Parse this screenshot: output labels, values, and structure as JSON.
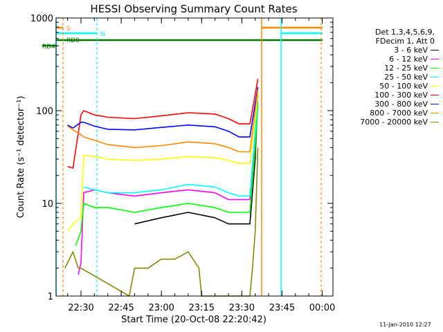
{
  "chart_data": {
    "type": "line",
    "title": "HESSI Observing Summary Count Rates",
    "xlabel": "Start Time (20-Oct-08 22:20:42)",
    "ylabel": "Count Rate (s⁻¹ detector⁻¹)",
    "y_scale": "log",
    "ylim": [
      1,
      1000
    ],
    "y_ticks": [
      1,
      10,
      100,
      1000
    ],
    "y_tick_labels": [
      "1",
      "10",
      "100",
      "1000"
    ],
    "xlim": [
      "22:20:42",
      "00:04:00"
    ],
    "x_ticks": [
      "22:30",
      "22:45",
      "23:00",
      "23:15",
      "23:30",
      "23:45",
      "00:00"
    ],
    "legend_header": [
      "Det 1,3,4,5,6,9,",
      "FDecim 1, Att 0"
    ],
    "flag_labels": {
      "s": "S",
      "n": "N",
      "rd": "RD",
      "rd0": "RD0",
      "rd4": "RD4"
    },
    "series": [
      {
        "name": "3 - 6 keV",
        "color": "#000000",
        "x": [
          "22:30",
          "22:40",
          "22:50",
          "23:00",
          "23:10",
          "23:20",
          "23:25",
          "23:29",
          "23:33",
          "23:35",
          "23:36"
        ],
        "values": [
          null,
          null,
          6,
          7,
          8,
          7,
          6,
          6,
          6,
          30,
          150
        ]
      },
      {
        "name": "6 - 12 keV",
        "color": "#ff00ff",
        "x": [
          "22:29",
          "22:30",
          "22:31",
          "22:35",
          "22:40",
          "22:50",
          "23:00",
          "23:10",
          "23:20",
          "23:25",
          "23:29",
          "23:33",
          "23:35",
          "23:36"
        ],
        "values": [
          1.7,
          2.3,
          13,
          14,
          13,
          12,
          13,
          14,
          13,
          11,
          11,
          11,
          50,
          150
        ]
      },
      {
        "name": "12 - 25 keV",
        "color": "#00ff00",
        "x": [
          "22:28",
          "22:30",
          "22:31",
          "22:35",
          "22:40",
          "22:50",
          "23:00",
          "23:10",
          "23:20",
          "23:25",
          "23:29",
          "23:33",
          "23:35",
          "23:36"
        ],
        "values": [
          3.5,
          5,
          10,
          9,
          9,
          8,
          9,
          10,
          9,
          8,
          8,
          8,
          40,
          120
        ]
      },
      {
        "name": "25 - 50 keV",
        "color": "#00ffff",
        "x": [
          "22:30",
          "22:31",
          "22:35",
          "22:40",
          "22:50",
          "23:00",
          "23:10",
          "23:20",
          "23:25",
          "23:29",
          "23:33",
          "23:35",
          "23:36"
        ],
        "values": [
          null,
          15,
          14,
          13,
          13,
          14,
          16,
          15,
          13,
          12,
          12,
          60,
          150
        ]
      },
      {
        "name": "50 - 100 keV",
        "color": "#ffff00",
        "x": [
          "22:25",
          "22:27",
          "22:30",
          "22:31",
          "22:35",
          "22:40",
          "22:50",
          "23:00",
          "23:10",
          "23:20",
          "23:25",
          "23:29",
          "23:33",
          "23:35",
          "23:36"
        ],
        "values": [
          5,
          6,
          7,
          33,
          32,
          30,
          29,
          30,
          32,
          31,
          29,
          27,
          27,
          80,
          150
        ]
      },
      {
        "name": "100 - 300 keV",
        "color": "#ff0000",
        "x": [
          "22:25",
          "22:27",
          "22:30",
          "22:31",
          "22:35",
          "22:40",
          "22:50",
          "23:00",
          "23:10",
          "23:20",
          "23:25",
          "23:29",
          "23:33",
          "23:35",
          "23:36"
        ],
        "values": [
          25,
          24,
          90,
          100,
          90,
          85,
          82,
          88,
          95,
          92,
          82,
          72,
          72,
          150,
          220
        ]
      },
      {
        "name": "300 - 800 keV",
        "color": "#0000ff",
        "x": [
          "22:25",
          "22:27",
          "22:30",
          "22:31",
          "22:35",
          "22:40",
          "22:50",
          "23:00",
          "23:10",
          "23:20",
          "23:25",
          "23:29",
          "23:33",
          "23:35",
          "23:36"
        ],
        "values": [
          70,
          65,
          75,
          75,
          68,
          63,
          62,
          66,
          70,
          67,
          60,
          52,
          52,
          120,
          180
        ]
      },
      {
        "name": "800 - 7000 keV",
        "color": "#ff8800",
        "x": [
          "22:25",
          "22:27",
          "22:30",
          "22:31",
          "22:35",
          "22:40",
          "22:50",
          "23:00",
          "23:10",
          "23:20",
          "23:25",
          "23:29",
          "23:33",
          "23:35",
          "23:36"
        ],
        "values": [
          68,
          62,
          55,
          52,
          48,
          43,
          40,
          42,
          46,
          44,
          40,
          36,
          36,
          100,
          170
        ]
      },
      {
        "name": "7000 - 20000 keV",
        "color": "#888800",
        "x": [
          "22:24",
          "22:27",
          "22:29",
          "22:30",
          "22:48",
          "22:50",
          "22:55",
          "23:00",
          "23:05",
          "23:10",
          "23:14",
          "23:15",
          "23:33",
          "23:34",
          "23:35",
          "23:36"
        ],
        "values": [
          2,
          3,
          2,
          2,
          1,
          2,
          2,
          2.5,
          2.5,
          3,
          2,
          1,
          1,
          2,
          5,
          40
        ]
      }
    ]
  },
  "footer": {
    "date": "11-Jan-2010 12:27"
  }
}
